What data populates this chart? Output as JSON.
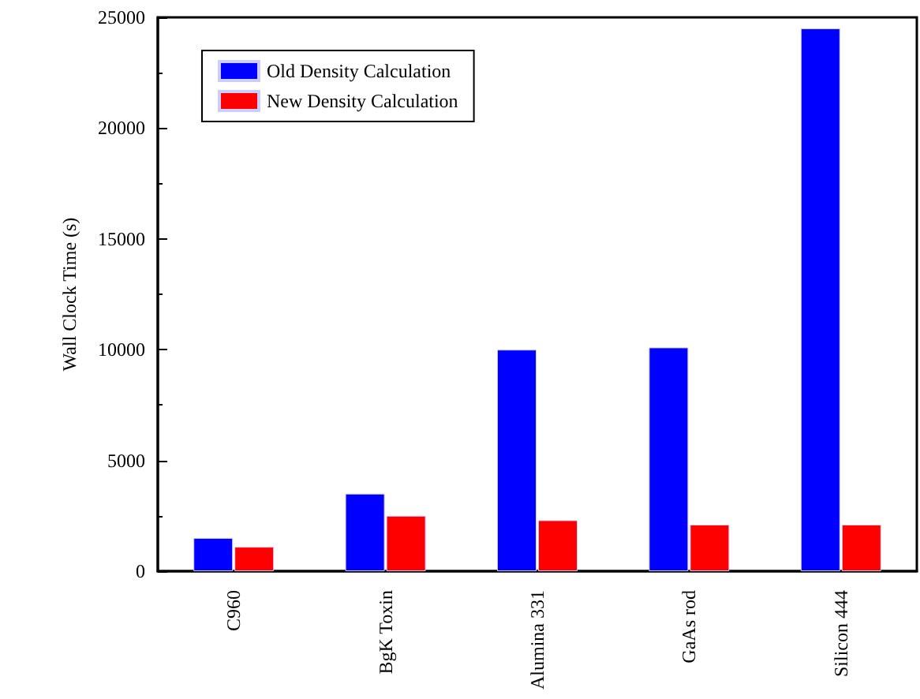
{
  "chart_data": {
    "type": "bar",
    "ylabel": "Wall Clock Time (s)",
    "categories": [
      "C960",
      "BgK Toxin",
      "Alumina 331",
      "GaAs rod",
      "Silicon 444"
    ],
    "series": [
      {
        "name": "Old Density Calculation",
        "color": "#0000ff",
        "values": [
          1500,
          3500,
          10000,
          10100,
          24500
        ]
      },
      {
        "name": "New Density Calculation",
        "color": "#ff0000",
        "values": [
          1100,
          2500,
          2300,
          2100,
          2100
        ]
      }
    ],
    "ylim": [
      0,
      25000
    ],
    "yticks": [
      0,
      5000,
      10000,
      15000,
      20000,
      25000
    ],
    "grid": false,
    "legend": "top left"
  }
}
